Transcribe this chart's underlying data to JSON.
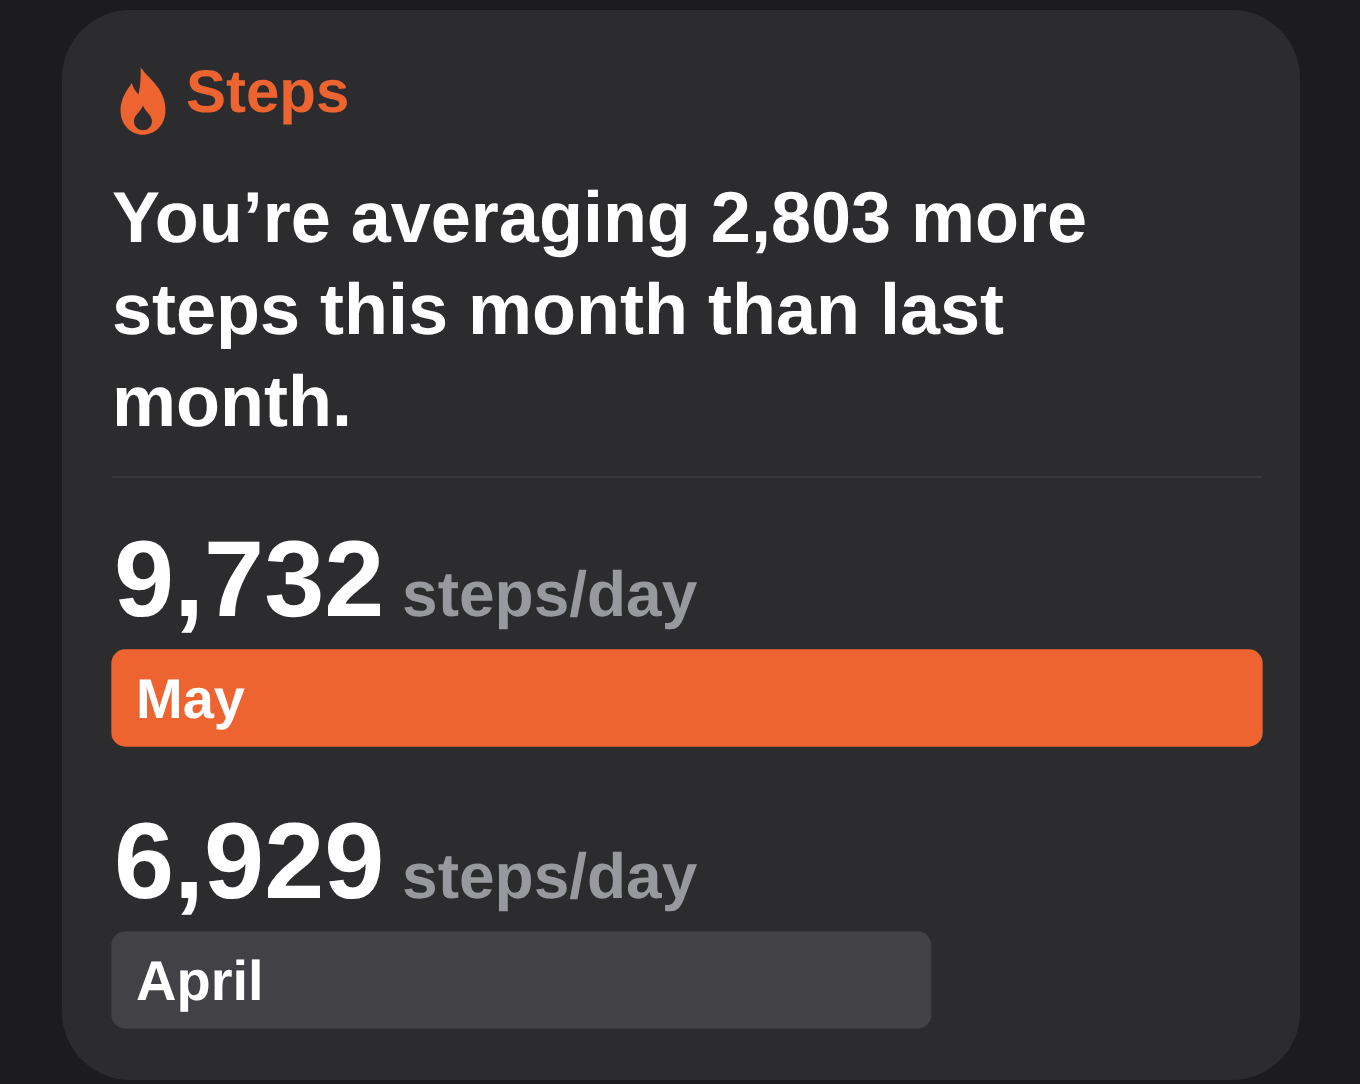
{
  "chart_data": {
    "type": "bar",
    "orientation": "horizontal",
    "title": "Steps",
    "subtitle": "You’re averaging 2,803 more steps this month than last month.",
    "categories": [
      "May",
      "April"
    ],
    "values": [
      9732,
      6929
    ],
    "colors": [
      "#ee6431",
      "#414146"
    ],
    "value_labels": [
      "9,732 steps/day",
      "6,929 steps/day"
    ],
    "tick_labels": "y"
  }
}
